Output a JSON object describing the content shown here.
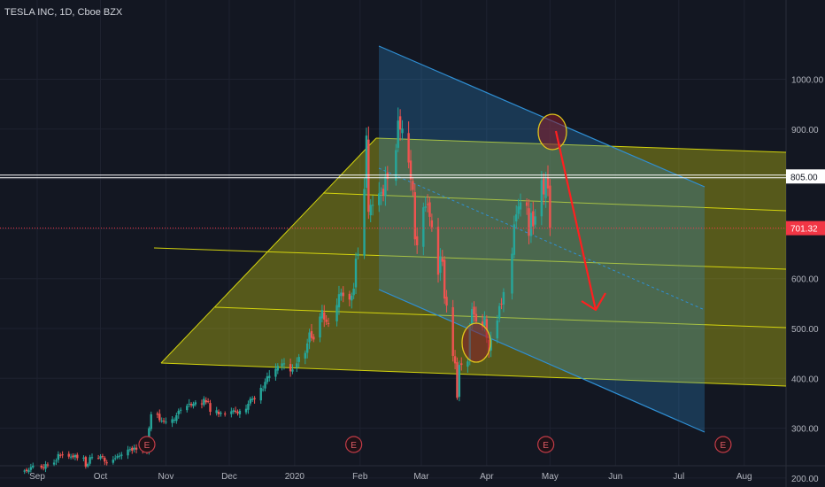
{
  "header": {
    "title": "TESLA INC, 1D, Cboe BZX"
  },
  "colors": {
    "background": "#131722",
    "grid": "#1e2230",
    "axis_text": "#b2b5be",
    "candle_up": "#26a69a",
    "candle_down": "#ef5350",
    "pitchfork": "#d4d40e",
    "channel": "#2f8fd4",
    "circle": "#e0c41b",
    "arrow": "#ff1f1f",
    "price_line": "#ffffff",
    "last_price": "#f23645"
  },
  "chart_data": {
    "type": "candlestick",
    "title": "TESLA INC, 1D, Cboe BZX",
    "x_axis": {
      "tick_labels": [
        "Sep",
        "Oct",
        "Nov",
        "Dec",
        "2020",
        "Feb",
        "Mar",
        "Apr",
        "May",
        "Jun",
        "Jul",
        "Aug"
      ]
    },
    "y_axis": {
      "range": [
        130,
        1045
      ],
      "tick_labels": [
        "1000.00",
        "900.00",
        "800.00",
        "700.00",
        "600.00",
        "500.00",
        "400.00",
        "300.00",
        "200.00"
      ],
      "tick_values": [
        1000,
        900,
        800,
        700,
        600,
        500,
        400,
        300,
        200
      ],
      "price_tags": [
        {
          "label": "805.00",
          "value": 805,
          "kind": "horizontal_line"
        },
        {
          "label": "701.32",
          "value": 701.32,
          "kind": "last_price"
        }
      ]
    },
    "earnings_markers": {
      "label": "E",
      "dates": [
        "2019-10-23",
        "2020-01-29",
        "2020-04-29",
        "2020-07-22"
      ]
    },
    "closes": [
      [
        "2019-08-26",
        215
      ],
      [
        "2019-08-27",
        214
      ],
      [
        "2019-08-28",
        216
      ],
      [
        "2019-08-29",
        222
      ],
      [
        "2019-08-30",
        225
      ],
      [
        "2019-09-03",
        221
      ],
      [
        "2019-09-04",
        220
      ],
      [
        "2019-09-05",
        228
      ],
      [
        "2019-09-06",
        227
      ],
      [
        "2019-09-09",
        231
      ],
      [
        "2019-09-10",
        235
      ],
      [
        "2019-09-11",
        248
      ],
      [
        "2019-09-12",
        245
      ],
      [
        "2019-09-13",
        247
      ],
      [
        "2019-09-16",
        243
      ],
      [
        "2019-09-17",
        243
      ],
      [
        "2019-09-18",
        242
      ],
      [
        "2019-09-19",
        246
      ],
      [
        "2019-09-20",
        240
      ],
      [
        "2019-09-23",
        241
      ],
      [
        "2019-09-24",
        223
      ],
      [
        "2019-09-25",
        228
      ],
      [
        "2019-09-26",
        242
      ],
      [
        "2019-09-27",
        242
      ],
      [
        "2019-09-30",
        240
      ],
      [
        "2019-10-01",
        244
      ],
      [
        "2019-10-02",
        243
      ],
      [
        "2019-10-03",
        233
      ],
      [
        "2019-10-04",
        231
      ],
      [
        "2019-10-07",
        237
      ],
      [
        "2019-10-08",
        240
      ],
      [
        "2019-10-09",
        244
      ],
      [
        "2019-10-10",
        245
      ],
      [
        "2019-10-11",
        247
      ],
      [
        "2019-10-14",
        257
      ],
      [
        "2019-10-15",
        258
      ],
      [
        "2019-10-16",
        255
      ],
      [
        "2019-10-17",
        261
      ],
      [
        "2019-10-18",
        257
      ],
      [
        "2019-10-21",
        254
      ],
      [
        "2019-10-22",
        255
      ],
      [
        "2019-10-23",
        254
      ],
      [
        "2019-10-24",
        300
      ],
      [
        "2019-10-25",
        328
      ],
      [
        "2019-10-28",
        327
      ],
      [
        "2019-10-29",
        316
      ],
      [
        "2019-10-30",
        315
      ],
      [
        "2019-10-31",
        314
      ],
      [
        "2019-11-01",
        313
      ],
      [
        "2019-11-04",
        318
      ],
      [
        "2019-11-05",
        317
      ],
      [
        "2019-11-06",
        326
      ],
      [
        "2019-11-07",
        335
      ],
      [
        "2019-11-08",
        337
      ],
      [
        "2019-11-11",
        345
      ],
      [
        "2019-11-12",
        349
      ],
      [
        "2019-11-13",
        346
      ],
      [
        "2019-11-14",
        349
      ],
      [
        "2019-11-15",
        352
      ],
      [
        "2019-11-18",
        349
      ],
      [
        "2019-11-19",
        359
      ],
      [
        "2019-11-20",
        352
      ],
      [
        "2019-11-21",
        354
      ],
      [
        "2019-11-22",
        333
      ],
      [
        "2019-11-25",
        336
      ],
      [
        "2019-11-26",
        328
      ],
      [
        "2019-11-27",
        331
      ],
      [
        "2019-11-29",
        329
      ],
      [
        "2019-12-02",
        334
      ],
      [
        "2019-12-03",
        336
      ],
      [
        "2019-12-04",
        333
      ],
      [
        "2019-12-05",
        330
      ],
      [
        "2019-12-06",
        335
      ],
      [
        "2019-12-09",
        339
      ],
      [
        "2019-12-10",
        349
      ],
      [
        "2019-12-11",
        359
      ],
      [
        "2019-12-12",
        359
      ],
      [
        "2019-12-13",
        358
      ],
      [
        "2019-12-16",
        381
      ],
      [
        "2019-12-17",
        378
      ],
      [
        "2019-12-18",
        393
      ],
      [
        "2019-12-19",
        404
      ],
      [
        "2019-12-20",
        405
      ],
      [
        "2019-12-23",
        419
      ],
      [
        "2019-12-24",
        425
      ],
      [
        "2019-12-26",
        430
      ],
      [
        "2019-12-27",
        430
      ],
      [
        "2019-12-30",
        414
      ],
      [
        "2019-12-31",
        418
      ],
      [
        "2020-01-02",
        430
      ],
      [
        "2020-01-03",
        443
      ],
      [
        "2020-01-06",
        451
      ],
      [
        "2020-01-07",
        470
      ],
      [
        "2020-01-08",
        492
      ],
      [
        "2020-01-09",
        481
      ],
      [
        "2020-01-10",
        478
      ],
      [
        "2020-01-13",
        524
      ],
      [
        "2020-01-14",
        537
      ],
      [
        "2020-01-15",
        518
      ],
      [
        "2020-01-16",
        513
      ],
      [
        "2020-01-17",
        510
      ],
      [
        "2020-01-21",
        547
      ],
      [
        "2020-01-22",
        569
      ],
      [
        "2020-01-23",
        572
      ],
      [
        "2020-01-24",
        565
      ],
      [
        "2020-01-27",
        558
      ],
      [
        "2020-01-28",
        566
      ],
      [
        "2020-01-29",
        580
      ],
      [
        "2020-01-30",
        640
      ],
      [
        "2020-01-31",
        650
      ],
      [
        "2020-02-03",
        780
      ],
      [
        "2020-02-04",
        887
      ],
      [
        "2020-02-05",
        734
      ],
      [
        "2020-02-06",
        748
      ],
      [
        "2020-02-07",
        748
      ],
      [
        "2020-02-10",
        771
      ],
      [
        "2020-02-11",
        774
      ],
      [
        "2020-02-12",
        767
      ],
      [
        "2020-02-13",
        805
      ],
      [
        "2020-02-14",
        800
      ],
      [
        "2020-02-18",
        858
      ],
      [
        "2020-02-19",
        917
      ],
      [
        "2020-02-20",
        899
      ],
      [
        "2020-02-21",
        901
      ],
      [
        "2020-02-24",
        833
      ],
      [
        "2020-02-25",
        799
      ],
      [
        "2020-02-26",
        778
      ],
      [
        "2020-02-27",
        679
      ],
      [
        "2020-02-28",
        667
      ],
      [
        "2020-03-02",
        743
      ],
      [
        "2020-03-03",
        745
      ],
      [
        "2020-03-04",
        749
      ],
      [
        "2020-03-05",
        724
      ],
      [
        "2020-03-06",
        703
      ],
      [
        "2020-03-09",
        608
      ],
      [
        "2020-03-10",
        645
      ],
      [
        "2020-03-11",
        634
      ],
      [
        "2020-03-12",
        560
      ],
      [
        "2020-03-13",
        546
      ],
      [
        "2020-03-16",
        445
      ],
      [
        "2020-03-17",
        430
      ],
      [
        "2020-03-18",
        361
      ],
      [
        "2020-03-19",
        427
      ],
      [
        "2020-03-20",
        427
      ],
      [
        "2020-03-23",
        434
      ],
      [
        "2020-03-24",
        505
      ],
      [
        "2020-03-25",
        539
      ],
      [
        "2020-03-26",
        528
      ],
      [
        "2020-03-27",
        514
      ],
      [
        "2020-03-30",
        502
      ],
      [
        "2020-03-31",
        524
      ],
      [
        "2020-04-01",
        481
      ],
      [
        "2020-04-02",
        454
      ],
      [
        "2020-04-03",
        480
      ],
      [
        "2020-04-06",
        516
      ],
      [
        "2020-04-07",
        545
      ],
      [
        "2020-04-08",
        548
      ],
      [
        "2020-04-09",
        573
      ],
      [
        "2020-04-13",
        650
      ],
      [
        "2020-04-14",
        709
      ],
      [
        "2020-04-15",
        729
      ],
      [
        "2020-04-16",
        745
      ],
      [
        "2020-04-17",
        753
      ],
      [
        "2020-04-20",
        746
      ],
      [
        "2020-04-21",
        686
      ],
      [
        "2020-04-22",
        732
      ],
      [
        "2020-04-23",
        705
      ],
      [
        "2020-04-24",
        725
      ],
      [
        "2020-04-27",
        798
      ],
      [
        "2020-04-28",
        769
      ],
      [
        "2020-04-29",
        800
      ],
      [
        "2020-04-30",
        781
      ],
      [
        "2020-05-01",
        701.32
      ]
    ]
  }
}
